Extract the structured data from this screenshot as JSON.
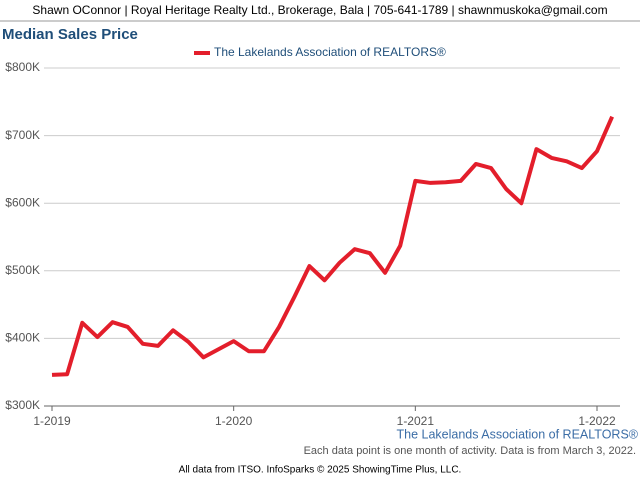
{
  "header": "Shawn OConnor | Royal Heritage Realty Ltd., Brokerage, Bala | 705-641-1789 | shawnmuskoka@gmail.com",
  "chart_data": {
    "type": "line",
    "title": "Median Sales Price",
    "categories": [
      "1-2019",
      null,
      null,
      null,
      null,
      null,
      null,
      null,
      null,
      null,
      null,
      null,
      "1-2020",
      null,
      null,
      null,
      null,
      null,
      null,
      null,
      null,
      null,
      null,
      null,
      "1-2021",
      null,
      null,
      null,
      null,
      null,
      null,
      null,
      null,
      null,
      null,
      null,
      "1-2022",
      null
    ],
    "series": [
      {
        "name": "The Lakelands Association of REALTORS®",
        "color": "#e31e2b",
        "values": [
          346000,
          347000,
          423000,
          402000,
          424000,
          417000,
          392000,
          389000,
          412000,
          395000,
          372000,
          384000,
          396000,
          381000,
          381000,
          417000,
          461000,
          507000,
          486000,
          512000,
          532000,
          526000,
          497000,
          537000,
          633000,
          630000,
          631000,
          633000,
          658000,
          652000,
          621000,
          600000,
          680000,
          667000,
          662000,
          652000,
          677000,
          728000
        ]
      }
    ],
    "ylim": [
      300000,
      800000
    ],
    "yticks": [
      {
        "value": 300000,
        "label": "$300K"
      },
      {
        "value": 400000,
        "label": "$400K"
      },
      {
        "value": 500000,
        "label": "$500K"
      },
      {
        "value": 600000,
        "label": "$600K"
      },
      {
        "value": 700000,
        "label": "$700K"
      },
      {
        "value": 800000,
        "label": "$800K"
      }
    ],
    "grid": true,
    "source_label": "The Lakelands Association of REALTORS®",
    "note": "Each data point is one month of activity. Data is from March 3, 2022."
  },
  "footer": "All data from ITSO. InfoSparks © 2025 ShowingTime Plus, LLC."
}
